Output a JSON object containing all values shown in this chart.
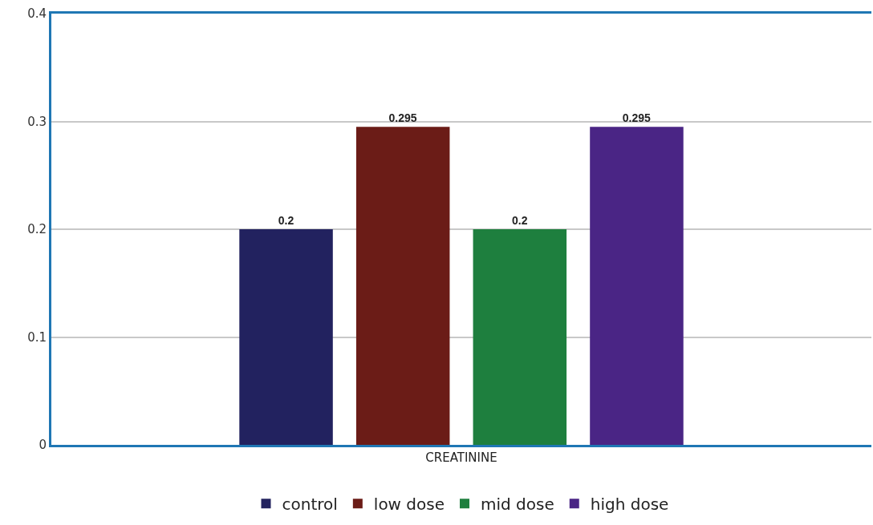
{
  "chart_data": {
    "type": "bar",
    "categories": [
      "CREATININE"
    ],
    "series": [
      {
        "name": "control",
        "color": "#22225f",
        "values": [
          0.2
        ]
      },
      {
        "name": "low dose",
        "color": "#6b1c17",
        "values": [
          0.295
        ]
      },
      {
        "name": "mid dose",
        "color": "#1e7f3e",
        "values": [
          0.2
        ]
      },
      {
        "name": "high dose",
        "color": "#4a2585",
        "values": [
          0.295
        ]
      }
    ],
    "ylim": [
      0,
      0.4
    ],
    "yticks": [
      0,
      0.1,
      0.2,
      0.3,
      0.4
    ],
    "grid": "y",
    "legend": "bottom",
    "data_labels": true
  }
}
